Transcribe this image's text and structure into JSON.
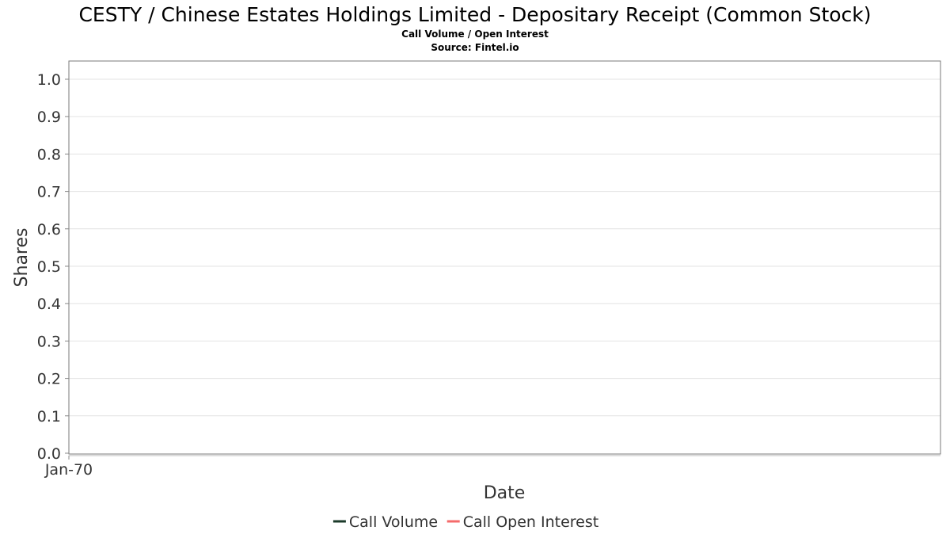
{
  "chart_data": {
    "type": "line",
    "title": "CESTY / Chinese Estates Holdings Limited - Depositary Receipt (Common Stock)",
    "subtitle": "Call Volume / Open Interest",
    "source": "Source: Fintel.io",
    "xlabel": "Date",
    "ylabel": "Shares",
    "ylim": [
      0,
      1.0
    ],
    "yticks": [
      0.0,
      0.1,
      0.2,
      0.3,
      0.4,
      0.5,
      0.6,
      0.7,
      0.8,
      0.9,
      1.0
    ],
    "ytick_labels": [
      "0.0",
      "0.1",
      "0.2",
      "0.3",
      "0.4",
      "0.5",
      "0.6",
      "0.7",
      "0.8",
      "0.9",
      "1.0"
    ],
    "xtick_labels": [
      "Jan-70"
    ],
    "grid": true,
    "legend_position": "bottom-center",
    "series": [
      {
        "name": "Call Volume",
        "color": "#1b3a2a",
        "values": []
      },
      {
        "name": "Call Open Interest",
        "color": "#f46b6b",
        "values": []
      }
    ]
  }
}
